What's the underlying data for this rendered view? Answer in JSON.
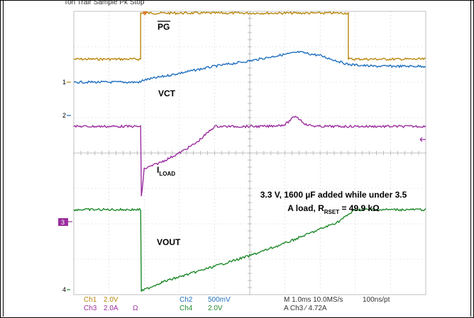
{
  "header_text": "Ton  Trair  Sample  Pk Stop",
  "colors": {
    "ch1": "#b8860b",
    "ch2": "#1f6fbf",
    "ch3": "#9b2e9f",
    "ch4": "#1f8a2b",
    "grid": "#b0b0b0",
    "trigger": "#e07a2b"
  },
  "labels": {
    "pg": "PG",
    "vct": "VCT",
    "iload_main": "I",
    "iload_sub": "LOAD",
    "vout": "VOUT",
    "annotation_line1": "3.3 V, 1600 µF added while under 3.5",
    "annotation_line2_a": "A load, R",
    "annotation_line2_sub": "RSET",
    "annotation_line2_b": " = 49.9 kΩ"
  },
  "channel_markers": {
    "ch1": "1",
    "ch2": "2",
    "ch3": "3",
    "ch4": "4"
  },
  "footer": {
    "ch1": "Ch1",
    "ch1_scale": "2.0V",
    "ch3": "Ch3",
    "ch3_scale": "2.0A",
    "ch3_unit": "Ω",
    "ch2": "Ch2",
    "ch2_scale": "500mV",
    "ch4": "Ch4",
    "ch4_scale": "2.0V",
    "timebase": "M 1.0ms 10.0MS/s",
    "record": "100ns/pt",
    "trigger": "A Ch3 ⁄ 4.72A"
  },
  "chart_data": {
    "type": "line",
    "x_unit": "div",
    "xlim": [
      0,
      10
    ],
    "ylim": [
      0,
      8
    ],
    "grid": true,
    "series": [
      {
        "name": "PG",
        "channel": "ch1",
        "x": [
          0,
          1.9,
          1.9,
          7.8,
          7.8,
          10
        ],
        "y": [
          6.65,
          6.65,
          7.95,
          7.95,
          6.65,
          6.65
        ]
      },
      {
        "name": "VCT",
        "channel": "ch2",
        "x": [
          0,
          1.9,
          1.95,
          3.0,
          4.0,
          5.0,
          5.8,
          6.4,
          7.0,
          7.8,
          8.5,
          10
        ],
        "y": [
          6.0,
          6.0,
          6.05,
          6.25,
          6.45,
          6.6,
          6.75,
          6.85,
          6.75,
          6.5,
          6.45,
          6.45
        ]
      },
      {
        "name": "ILOAD",
        "channel": "ch3",
        "x": [
          0,
          1.9,
          1.92,
          2.0,
          2.5,
          3.0,
          3.5,
          4.0,
          4.5,
          5.0,
          5.5,
          6.0,
          6.3,
          6.6,
          6.9,
          7.2,
          10
        ],
        "y": [
          4.75,
          4.75,
          2.75,
          3.55,
          3.75,
          4.0,
          4.3,
          4.75,
          4.75,
          4.75,
          4.75,
          4.8,
          5.05,
          4.8,
          4.75,
          4.75,
          4.75
        ]
      },
      {
        "name": "VOUT",
        "channel": "ch4",
        "x": [
          0,
          1.9,
          1.92,
          2.5,
          3.0,
          4.0,
          5.0,
          6.0,
          7.0,
          7.5,
          8.0,
          10
        ],
        "y": [
          2.4,
          2.4,
          0.1,
          0.35,
          0.5,
          0.8,
          1.1,
          1.45,
          1.85,
          2.05,
          2.4,
          2.4
        ]
      }
    ]
  }
}
